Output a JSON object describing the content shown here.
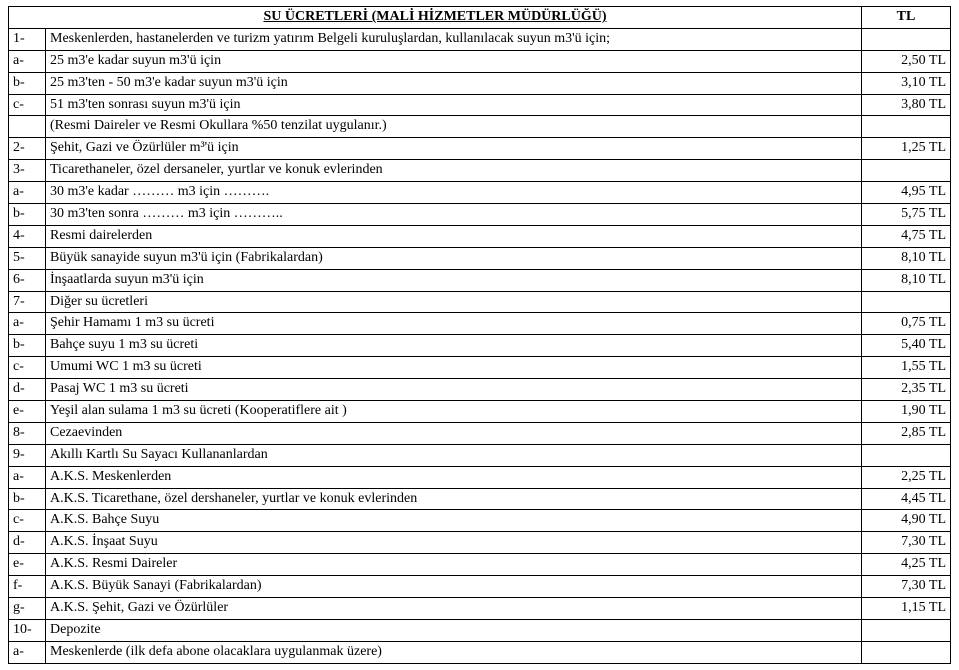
{
  "header": {
    "title": "SU ÜCRETLERİ (MALİ HİZMETLER MÜDÜRLÜĞÜ)",
    "unit": "TL"
  },
  "rows": [
    {
      "n": "1-",
      "desc": "Meskenlerden, hastanelerden ve turizm yatırım  Belgeli kuruluşlardan, kullanılacak suyun m3'ü için;",
      "price": ""
    },
    {
      "n": "a-",
      "desc": "25 m3'e kadar suyun m3'ü için",
      "price": "2,50 TL"
    },
    {
      "n": "b-",
      "desc": "25 m3'ten - 50 m3'e kadar suyun m3'ü için",
      "price": "3,10 TL"
    },
    {
      "n": "c-",
      "desc": "51 m3'ten sonrası suyun m3'ü için",
      "price": "3,80 TL"
    },
    {
      "n": "",
      "desc": "(Resmi Daireler ve Resmi Okullara %50 tenzilat uygulanır.)",
      "price": ""
    },
    {
      "n": "2-",
      "desc": "Şehit, Gazi ve Özürlüler m³'ü için",
      "price": "1,25 TL"
    },
    {
      "n": "3-",
      "desc": "Ticarethaneler, özel dersaneler, yurtlar ve konuk evlerinden",
      "price": ""
    },
    {
      "n": "a-",
      "desc": "30 m3'e kadar ……… m3 için ……….",
      "price": "4,95 TL"
    },
    {
      "n": "b-",
      "desc": "30 m3'ten sonra ……… m3 için ………..",
      "price": "5,75 TL"
    },
    {
      "n": "4-",
      "desc": "Resmi dairelerden",
      "price": "4,75 TL"
    },
    {
      "n": "5-",
      "desc": "Büyük sanayide suyun m3'ü için  (Fabrikalardan)",
      "price": "8,10 TL"
    },
    {
      "n": "6-",
      "desc": "İnşaatlarda suyun m3'ü için",
      "price": "8,10 TL"
    },
    {
      "n": "7-",
      "desc": "Diğer su ücretleri",
      "price": ""
    },
    {
      "n": "a-",
      "desc": "Şehir Hamamı 1 m3 su ücreti",
      "price": "0,75 TL"
    },
    {
      "n": "b-",
      "desc": "Bahçe suyu 1 m3 su ücreti",
      "price": "5,40 TL"
    },
    {
      "n": "c-",
      "desc": "Umumi WC 1 m3 su ücreti",
      "price": "1,55 TL"
    },
    {
      "n": "d-",
      "desc": "Pasaj WC 1 m3 su ücreti",
      "price": "2,35 TL"
    },
    {
      "n": "e-",
      "desc": "Yeşil alan sulama 1 m3 su ücreti (Kooperatiflere ait )",
      "price": "1,90 TL"
    },
    {
      "n": "8-",
      "desc": "Cezaevinden",
      "price": "2,85 TL"
    },
    {
      "n": "9-",
      "desc": "Akıllı Kartlı Su Sayacı Kullananlardan",
      "price": ""
    },
    {
      "n": "a-",
      "desc": "A.K.S. Meskenlerden",
      "price": "2,25 TL"
    },
    {
      "n": "b-",
      "desc": "A.K.S. Ticarethane, özel dershaneler, yurtlar ve konuk evlerinden",
      "price": "4,45 TL"
    },
    {
      "n": "c-",
      "desc": "A.K.S. Bahçe Suyu",
      "price": "4,90 TL"
    },
    {
      "n": "d-",
      "desc": "A.K.S. İnşaat Suyu",
      "price": "7,30 TL"
    },
    {
      "n": "e-",
      "desc": "A.K.S. Resmi Daireler",
      "price": "4,25 TL"
    },
    {
      "n": "f-",
      "desc": "A.K.S. Büyük Sanayi (Fabrikalardan)",
      "price": "7,30 TL"
    },
    {
      "n": "g-",
      "desc": "A.K.S. Şehit, Gazi ve Özürlüler",
      "price": "1,15 TL"
    },
    {
      "n": "10-",
      "desc": "Depozite",
      "price": ""
    },
    {
      "n": "a-",
      "desc": "Meskenlerde (ilk defa abone olacaklara uygulanmak üzere)",
      "price": ""
    }
  ]
}
